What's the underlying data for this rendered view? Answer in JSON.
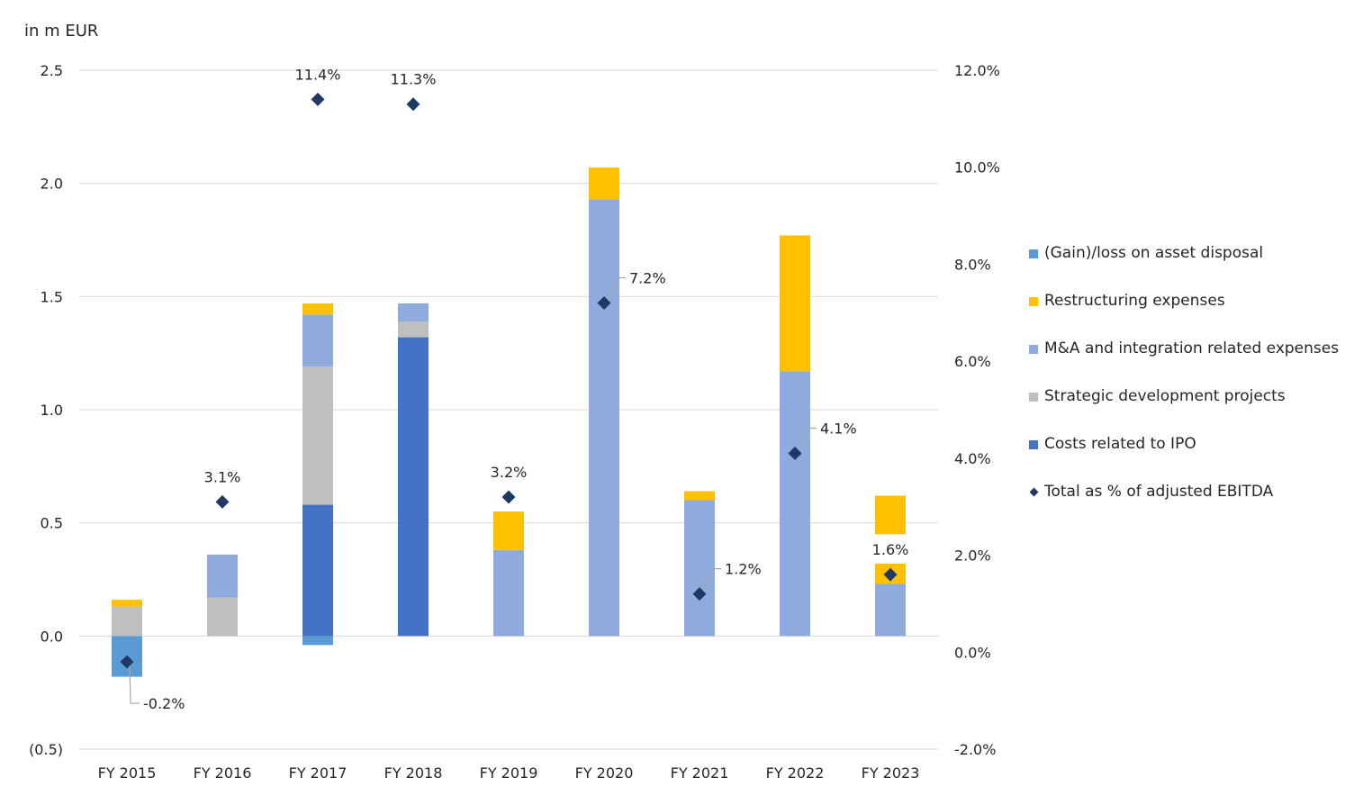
{
  "unit_label": "in m EUR",
  "chart_data": {
    "type": "bar",
    "stacked": true,
    "categories": [
      "FY 2015",
      "FY 2016",
      "FY 2017",
      "FY 2018",
      "FY 2019",
      "FY 2020",
      "FY 2021",
      "FY 2022",
      "FY 2023"
    ],
    "y_left": {
      "range": [
        -0.5,
        2.5
      ],
      "ticks": [
        -0.5,
        0.0,
        0.5,
        1.0,
        1.5,
        2.0,
        2.5
      ],
      "tick_labels": [
        "(0.5)",
        "0.0",
        "0.5",
        "1.0",
        "1.5",
        "2.0",
        "2.5"
      ]
    },
    "y_right": {
      "range": [
        -2.0,
        12.0
      ],
      "ticks": [
        -2,
        0,
        2,
        4,
        6,
        8,
        10,
        12
      ],
      "tick_labels": [
        "-2.0%",
        "0.0%",
        "2.0%",
        "4.0%",
        "6.0%",
        "8.0%",
        "10.0%",
        "12.0%"
      ]
    },
    "grid": "horizontal",
    "legend_position": "right",
    "series": [
      {
        "name": "(Gain)/loss on asset disposal",
        "color": "#5B9BD5",
        "values": [
          -0.18,
          0,
          -0.04,
          0,
          0,
          0,
          0,
          0,
          0
        ]
      },
      {
        "name": "Costs related to IPO",
        "color": "#4472C4",
        "values": [
          0,
          0,
          0.58,
          1.32,
          0,
          0,
          0,
          0,
          0
        ]
      },
      {
        "name": "Strategic development projects",
        "color": "#BFBFBF",
        "values": [
          0.13,
          0.17,
          0.61,
          0.07,
          0,
          0,
          0,
          0,
          0
        ]
      },
      {
        "name": "M&A and integration related expenses",
        "color": "#8FAADC",
        "values": [
          0,
          0.19,
          0.23,
          0.08,
          0.38,
          1.93,
          0.6,
          1.17,
          0.23
        ]
      },
      {
        "name": "Restructuring expenses",
        "color": "#FFC000",
        "values": [
          0.03,
          0,
          0.05,
          0,
          0.17,
          0.14,
          0.04,
          0.6,
          0.09
        ]
      },
      {
        "name": "Restructuring expenses (additional)",
        "color": "#FFC000",
        "values": [
          0,
          0,
          0,
          0,
          0,
          0,
          0,
          0,
          0.17
        ],
        "offset_base": [
          0,
          0,
          0,
          0,
          0,
          0,
          0,
          0,
          0.45
        ]
      }
    ],
    "line_series": {
      "name": "Total as % of adjusted EBITDA",
      "color": "#203864",
      "axis": "right",
      "values": [
        -0.2,
        3.1,
        11.4,
        11.3,
        3.2,
        7.2,
        1.2,
        4.1,
        1.6
      ],
      "labels": [
        "-0.2%",
        "3.1%",
        "11.4%",
        "11.3%",
        "3.2%",
        "7.2%",
        "1.2%",
        "4.1%",
        "1.6%"
      ],
      "label_positions": [
        "below-right",
        "above",
        "above",
        "above",
        "above",
        "right",
        "right",
        "right",
        "above"
      ]
    },
    "legend": [
      {
        "label": "(Gain)/loss on asset disposal",
        "color": "#5B9BD5",
        "shape": "square"
      },
      {
        "label": "Restructuring expenses",
        "color": "#FFC000",
        "shape": "square"
      },
      {
        "label": "M&A and integration related expenses",
        "color": "#8FAADC",
        "shape": "square"
      },
      {
        "label": "Strategic development projects",
        "color": "#BFBFBF",
        "shape": "square"
      },
      {
        "label": "Costs related to IPO",
        "color": "#4472C4",
        "shape": "square"
      },
      {
        "label": "Total as % of adjusted EBITDA",
        "color": "#203864",
        "shape": "diamond"
      }
    ]
  }
}
